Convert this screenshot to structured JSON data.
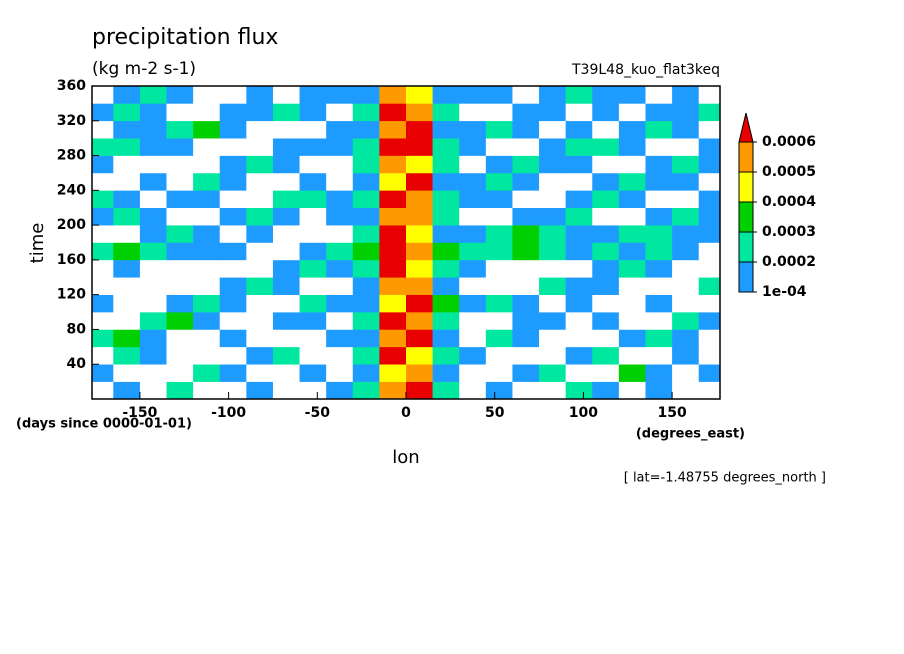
{
  "chart_data": {
    "type": "contour",
    "title": "precipitation flux",
    "subtitle": "(kg m-2 s-1)",
    "experiment": "T39L48_kuo_flat3keq",
    "xlabel": "lon",
    "ylabel": "time",
    "x_units": "(degrees_east)",
    "y_units": "(days since 0000-01-01)",
    "annotation": "[ lat=-1.48755 degrees_north ]",
    "xlim": [
      -177,
      177
    ],
    "xticks": [
      -150,
      -100,
      -50,
      0,
      50,
      100,
      150
    ],
    "ylim": [
      0,
      360
    ],
    "yticks": [
      40,
      80,
      120,
      160,
      200,
      240,
      280,
      320,
      360
    ],
    "levels": [
      {
        "value": 0.0001,
        "label": "1e-04"
      },
      0.0002,
      0.0003,
      0.0004,
      0.0005,
      0.0006
    ],
    "colors": [
      "#1e9bff",
      "#00e8a0",
      "#00d000",
      "#ffff00",
      "#ff9900",
      "#e80000"
    ],
    "x": [
      -172.5,
      -157.5,
      -142.5,
      -127.5,
      -112.5,
      -97.5,
      -82.5,
      -67.5,
      -52.5,
      -37.5,
      -22.5,
      -7.5,
      7.5,
      22.5,
      37.5,
      52.5,
      67.5,
      82.5,
      97.5,
      112.5,
      127.5,
      142.5,
      157.5,
      172.5
    ],
    "y": [
      10,
      30,
      50,
      70,
      90,
      110,
      130,
      150,
      170,
      190,
      210,
      230,
      250,
      270,
      290,
      310,
      330,
      350
    ],
    "z": [
      [
        0,
        0.0001,
        0,
        0.0002,
        0,
        0,
        0.0001,
        0,
        0,
        0.0001,
        0.0002,
        0.0005,
        0.0006,
        0.0002,
        0,
        0.0001,
        0,
        0,
        0.0002,
        0.0001,
        0,
        0.0001,
        0,
        0
      ],
      [
        0.0001,
        0,
        0,
        0,
        0.0002,
        0.0001,
        0,
        0,
        0.0001,
        0,
        0.0001,
        0.0004,
        0.0005,
        0.0001,
        0,
        0,
        0.0001,
        0.0002,
        0,
        0,
        0.0003,
        0.0001,
        0,
        0.0001
      ],
      [
        0,
        0.0002,
        0.0001,
        0,
        0,
        0,
        0.0001,
        0.0002,
        0,
        0,
        0.0002,
        0.0006,
        0.0004,
        0.0002,
        0.0001,
        0,
        0,
        0,
        0.0001,
        0.0002,
        0,
        0,
        0.0001,
        0
      ],
      [
        0.0002,
        0.0003,
        0.0001,
        0,
        0,
        0.0001,
        0,
        0,
        0,
        0.0001,
        0.0001,
        0.0005,
        0.0006,
        0.0001,
        0,
        0.0002,
        0.0001,
        0,
        0,
        0,
        0.0001,
        0.0002,
        0.0001,
        0
      ],
      [
        0,
        0,
        0.0002,
        0.0003,
        0.0001,
        0,
        0,
        0.0001,
        0.0001,
        0,
        0.0002,
        0.0006,
        0.0005,
        0.0002,
        0,
        0,
        0.0001,
        0.0001,
        0,
        0.0001,
        0,
        0,
        0.0002,
        0.0001
      ],
      [
        0.0001,
        0,
        0,
        0.0001,
        0.0002,
        0.0001,
        0,
        0,
        0.0002,
        0.0001,
        0.0001,
        0.0004,
        0.0006,
        0.0003,
        0.0001,
        0.0002,
        0.0001,
        0,
        0.0001,
        0,
        0,
        0.0001,
        0,
        0
      ],
      [
        0,
        0,
        0,
        0,
        0,
        0.0001,
        0.0002,
        0.0001,
        0,
        0,
        0.0001,
        0.0005,
        0.0005,
        0.0001,
        0,
        0,
        0,
        0.0002,
        0.0001,
        0.0001,
        0,
        0,
        0,
        0.0002
      ],
      [
        0,
        0.0001,
        0,
        0,
        0,
        0,
        0,
        0.0001,
        0.0002,
        0.0001,
        0.0002,
        0.0006,
        0.0004,
        0.0002,
        0.0001,
        0,
        0,
        0,
        0,
        0.0001,
        0.0002,
        0.0001,
        0,
        0
      ],
      [
        0.0002,
        0.0003,
        0.0002,
        0.0001,
        0.0001,
        0.0001,
        0,
        0,
        0.0001,
        0.0002,
        0.0003,
        0.0006,
        0.0005,
        0.0003,
        0.0002,
        0.0002,
        0.0003,
        0.0002,
        0.0001,
        0.0002,
        0.0001,
        0.0002,
        0.0001,
        0
      ],
      [
        0,
        0,
        0.0001,
        0.0002,
        0.0001,
        0,
        0.0001,
        0,
        0,
        0,
        0.0002,
        0.0006,
        0.0004,
        0.0001,
        0.0001,
        0.0002,
        0.0003,
        0.0002,
        0.0001,
        0.0001,
        0.0002,
        0.0002,
        0.0001,
        0.0001
      ],
      [
        0.0001,
        0.0002,
        0.0001,
        0,
        0,
        0.0001,
        0.0002,
        0.0001,
        0,
        0.0001,
        0.0001,
        0.0005,
        0.0005,
        0.0002,
        0,
        0,
        0.0001,
        0.0001,
        0.0002,
        0,
        0,
        0.0001,
        0.0002,
        0.0001
      ],
      [
        0.0002,
        0.0001,
        0,
        0.0001,
        0.0001,
        0,
        0,
        0.0002,
        0.0002,
        0.0001,
        0.0002,
        0.0006,
        0.0005,
        0.0002,
        0.0001,
        0.0001,
        0,
        0,
        0.0001,
        0.0002,
        0.0001,
        0,
        0,
        0.0001
      ],
      [
        0,
        0,
        0.0001,
        0,
        0.0002,
        0.0001,
        0,
        0,
        0.0001,
        0,
        0.0001,
        0.0004,
        0.0006,
        0.0001,
        0.0001,
        0.0002,
        0.0001,
        0,
        0,
        0.0001,
        0.0002,
        0.0001,
        0.0001,
        0
      ],
      [
        0.0001,
        0,
        0,
        0,
        0,
        0.0001,
        0.0002,
        0.0001,
        0,
        0,
        0.0002,
        0.0005,
        0.0004,
        0.0002,
        0,
        0.0001,
        0.0002,
        0.0001,
        0.0001,
        0,
        0,
        0.0001,
        0.0002,
        0.0001
      ],
      [
        0.0002,
        0.0002,
        0.0001,
        0.0001,
        0,
        0,
        0,
        0.0001,
        0.0001,
        0.0001,
        0.0002,
        0.0006,
        0.0006,
        0.0002,
        0.0001,
        0,
        0,
        0.0001,
        0.0002,
        0.0002,
        0.0001,
        0,
        0,
        0.0001
      ],
      [
        0,
        0.0001,
        0.0001,
        0.0002,
        0.0003,
        0.0001,
        0,
        0,
        0,
        0.0001,
        0.0001,
        0.0005,
        0.0006,
        0.0001,
        0.0001,
        0.0002,
        0.0001,
        0,
        0.0001,
        0,
        0.0001,
        0.0002,
        0.0001,
        0
      ],
      [
        0.0001,
        0.0002,
        0.0001,
        0,
        0,
        0.0001,
        0.0001,
        0.0002,
        0.0001,
        0,
        0.0002,
        0.0006,
        0.0005,
        0.0002,
        0,
        0,
        0.0001,
        0.0001,
        0,
        0.0001,
        0,
        0.0001,
        0.0001,
        0.0002
      ],
      [
        0,
        0.0001,
        0.0002,
        0.0001,
        0,
        0,
        0.0001,
        0,
        0.0001,
        0.0001,
        0.0001,
        0.0005,
        0.0004,
        0.0001,
        0.0001,
        0.0001,
        0,
        0.0001,
        0.0002,
        0.0001,
        0.0001,
        0,
        0.0001,
        0
      ]
    ]
  }
}
